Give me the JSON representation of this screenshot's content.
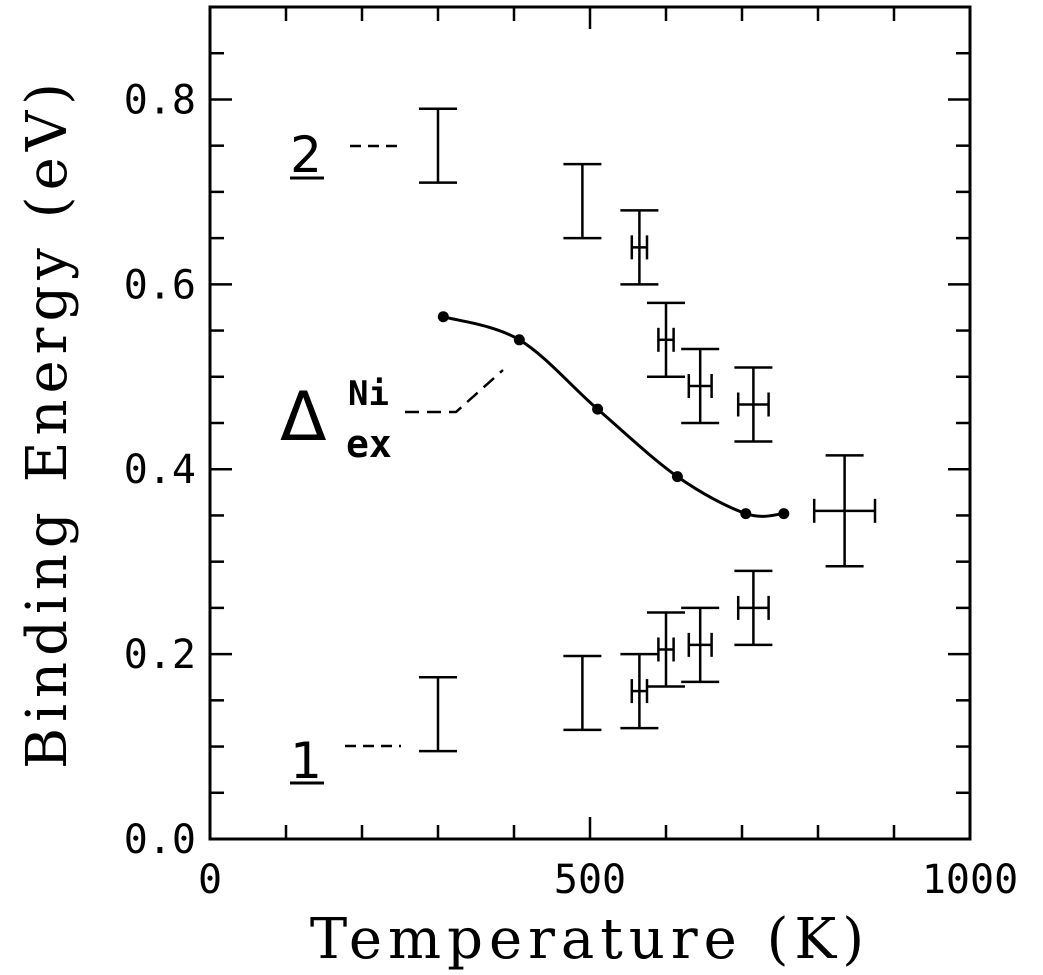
{
  "chart_data": {
    "type": "scatter",
    "xlabel": "Temperature (K)",
    "ylabel": "Binding Energy (eV)",
    "xlim": [
      0,
      1000
    ],
    "ylim": [
      0,
      0.9
    ],
    "x_ticks": [
      "0",
      "500",
      "1000"
    ],
    "y_ticks": [
      "0.0",
      "0.2",
      "0.4",
      "0.6",
      "0.8"
    ],
    "grid": false,
    "series": [
      {
        "name": "2",
        "points": [
          {
            "x": 300,
            "y": 0.75,
            "ylo": 0.71,
            "yhi": 0.79
          },
          {
            "x": 490,
            "y": 0.69,
            "ylo": 0.65,
            "yhi": 0.73
          },
          {
            "x": 565,
            "y": 0.64,
            "ylo": 0.6,
            "yhi": 0.68,
            "xerr": 10
          },
          {
            "x": 600,
            "y": 0.54,
            "ylo": 0.5,
            "yhi": 0.58,
            "xerr": 10
          },
          {
            "x": 645,
            "y": 0.49,
            "ylo": 0.45,
            "yhi": 0.53,
            "xerr": 15
          },
          {
            "x": 715,
            "y": 0.47,
            "ylo": 0.43,
            "yhi": 0.51,
            "xerr": 20
          },
          {
            "x": 835,
            "y": 0.355,
            "ylo": 0.295,
            "yhi": 0.415,
            "xerr": 40
          }
        ]
      },
      {
        "name": "1",
        "points": [
          {
            "x": 300,
            "y": 0.135,
            "ylo": 0.095,
            "yhi": 0.175
          },
          {
            "x": 490,
            "y": 0.158,
            "ylo": 0.118,
            "yhi": 0.198
          },
          {
            "x": 565,
            "y": 0.16,
            "ylo": 0.12,
            "yhi": 0.2,
            "xerr": 10
          },
          {
            "x": 600,
            "y": 0.205,
            "ylo": 0.165,
            "yhi": 0.245,
            "xerr": 10
          },
          {
            "x": 645,
            "y": 0.21,
            "ylo": 0.17,
            "yhi": 0.25,
            "xerr": 15
          },
          {
            "x": 715,
            "y": 0.25,
            "ylo": 0.21,
            "yhi": 0.29,
            "xerr": 20
          }
        ]
      },
      {
        "name": "Δ_ex^Ni",
        "points": [
          {
            "x": 307,
            "y": 0.565
          },
          {
            "x": 407,
            "y": 0.54
          },
          {
            "x": 510,
            "y": 0.465
          },
          {
            "x": 615,
            "y": 0.392
          },
          {
            "x": 705,
            "y": 0.352
          },
          {
            "x": 755,
            "y": 0.352
          }
        ]
      }
    ],
    "annotations": {
      "label_2": "2",
      "label_1": "1",
      "delta_symbol": "Δ",
      "delta_super": "Ni",
      "delta_sub": "ex"
    }
  }
}
